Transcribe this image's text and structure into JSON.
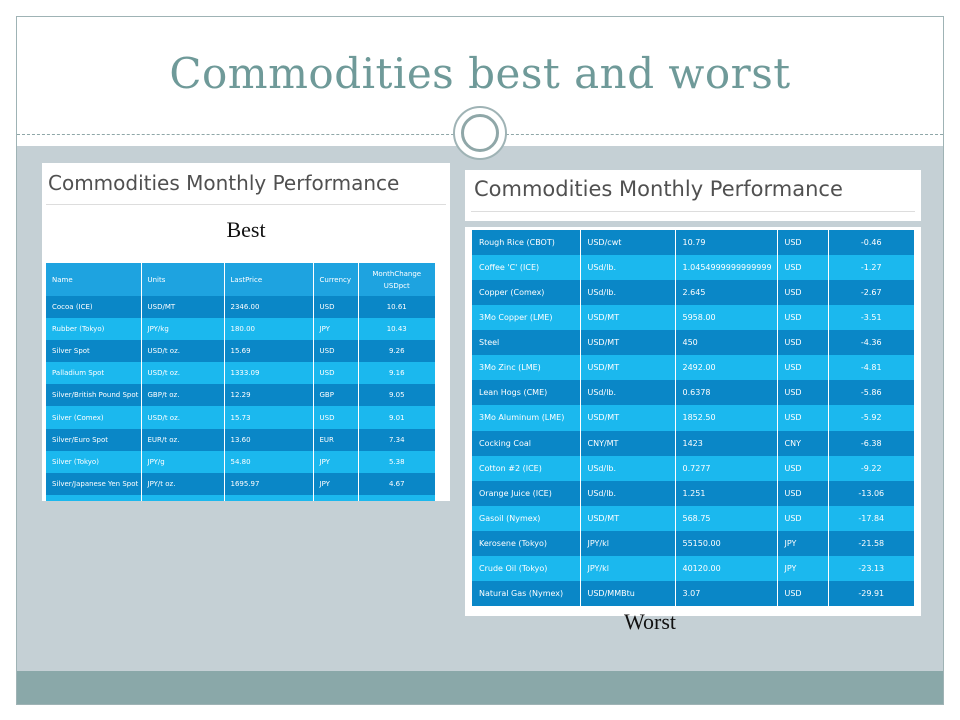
{
  "slide": {
    "title": "Commodities best and worst"
  },
  "best": {
    "heading": "Commodities Monthly Performance",
    "label": "Best",
    "columns": [
      "Name",
      "Units",
      "LastPrice",
      "Currency",
      "MonthChange USDpct"
    ],
    "rows": [
      [
        "Cocoa (ICE)",
        "USD/MT",
        "2346.00",
        "USD",
        "10.61"
      ],
      [
        "Rubber (Tokyo)",
        "JPY/kg",
        "180.00",
        "JPY",
        "10.43"
      ],
      [
        "Silver Spot",
        "USD/t oz.",
        "15.69",
        "USD",
        "9.26"
      ],
      [
        "Palladium Spot",
        "USD/t oz.",
        "1333.09",
        "USD",
        "9.16"
      ],
      [
        "Silver/British Pound Spot",
        "GBP/t oz.",
        "12.29",
        "GBP",
        "9.05"
      ],
      [
        "Silver (Comex)",
        "USD/t oz.",
        "15.73",
        "USD",
        "9.01"
      ],
      [
        "Silver/Euro Spot",
        "EUR/t oz.",
        "13.60",
        "EUR",
        "7.34"
      ],
      [
        "Silver (Tokyo)",
        "JPY/g",
        "54.80",
        "JPY",
        "5.38"
      ],
      [
        "Silver/Japanese Yen Spot",
        "JPY/t oz.",
        "1695.97",
        "JPY",
        "4.67"
      ]
    ]
  },
  "worst": {
    "heading": "Commodities Monthly Performance",
    "label": "Worst",
    "rows": [
      [
        "Rough Rice (CBOT)",
        "USD/cwt",
        "10.79",
        "USD",
        "-0.46"
      ],
      [
        "Coffee 'C' (ICE)",
        "USd/lb.",
        "1.0454999999999999",
        "USD",
        "-1.27"
      ],
      [
        "Copper (Comex)",
        "USd/lb.",
        "2.645",
        "USD",
        "-2.67"
      ],
      [
        "3Mo Copper (LME)",
        "USD/MT",
        "5958.00",
        "USD",
        "-3.51"
      ],
      [
        "Steel",
        "USD/MT",
        "450",
        "USD",
        "-4.36"
      ],
      [
        "3Mo Zinc (LME)",
        "USD/MT",
        "2492.00",
        "USD",
        "-4.81"
      ],
      [
        "Lean Hogs (CME)",
        "USd/lb.",
        "0.6378",
        "USD",
        "-5.86"
      ],
      [
        "3Mo Aluminum (LME)",
        "USD/MT",
        "1852.50",
        "USD",
        "-5.92"
      ],
      [
        "Cocking Coal",
        "CNY/MT",
        "1423",
        "CNY",
        "-6.38"
      ],
      [
        "Cotton #2 (ICE)",
        "USd/lb.",
        "0.7277",
        "USD",
        "-9.22"
      ],
      [
        "Orange Juice (ICE)",
        "USd/lb.",
        "1.251",
        "USD",
        "-13.06"
      ],
      [
        "Gasoil (Nymex)",
        "USD/MT",
        "568.75",
        "USD",
        "-17.84"
      ],
      [
        "Kerosene (Tokyo)",
        "JPY/kl",
        "55150.00",
        "JPY",
        "-21.58"
      ],
      [
        "Crude Oil (Tokyo)",
        "JPY/kl",
        "40120.00",
        "JPY",
        "-23.13"
      ],
      [
        "Natural Gas (Nymex)",
        "USD/MMBtu",
        "3.07",
        "USD",
        "-29.91"
      ]
    ]
  }
}
